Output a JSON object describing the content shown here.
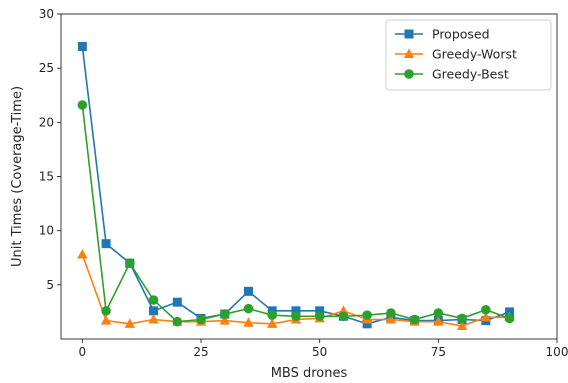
{
  "chart_data": {
    "type": "line",
    "xlabel": "MBS drones",
    "ylabel": "Unit Times (Coverage-Time)",
    "xlim": [
      -4.5,
      100
    ],
    "ylim": [
      0,
      30
    ],
    "xticks": [
      0,
      25,
      50,
      75,
      100
    ],
    "yticks": [
      5,
      10,
      15,
      20,
      25,
      30
    ],
    "grid": false,
    "legend_position": "top-right",
    "x": [
      0,
      5,
      10,
      15,
      20,
      25,
      30,
      35,
      40,
      45,
      50,
      55,
      60,
      65,
      70,
      75,
      80,
      85,
      90
    ],
    "series": [
      {
        "name": "Proposed",
        "color": "#1f77b4",
        "marker": "square",
        "values": [
          27.0,
          8.8,
          7.0,
          2.6,
          3.4,
          1.9,
          2.3,
          4.4,
          2.6,
          2.6,
          2.6,
          2.1,
          1.4,
          2.0,
          1.7,
          1.7,
          1.8,
          1.7,
          2.5
        ]
      },
      {
        "name": "Greedy-Worst",
        "color": "#ff7f0e",
        "marker": "triangle",
        "values": [
          7.8,
          1.7,
          1.4,
          1.8,
          1.6,
          1.6,
          1.7,
          1.5,
          1.4,
          1.8,
          1.9,
          2.6,
          1.8,
          1.8,
          1.6,
          1.6,
          1.2,
          2.0,
          2.0
        ]
      },
      {
        "name": "Greedy-Best",
        "color": "#2ca02c",
        "marker": "circle",
        "values": [
          21.6,
          2.6,
          7.0,
          3.6,
          1.6,
          1.8,
          2.3,
          2.8,
          2.2,
          2.1,
          2.1,
          2.1,
          2.2,
          2.4,
          1.8,
          2.4,
          1.9,
          2.7,
          1.9
        ]
      }
    ]
  }
}
